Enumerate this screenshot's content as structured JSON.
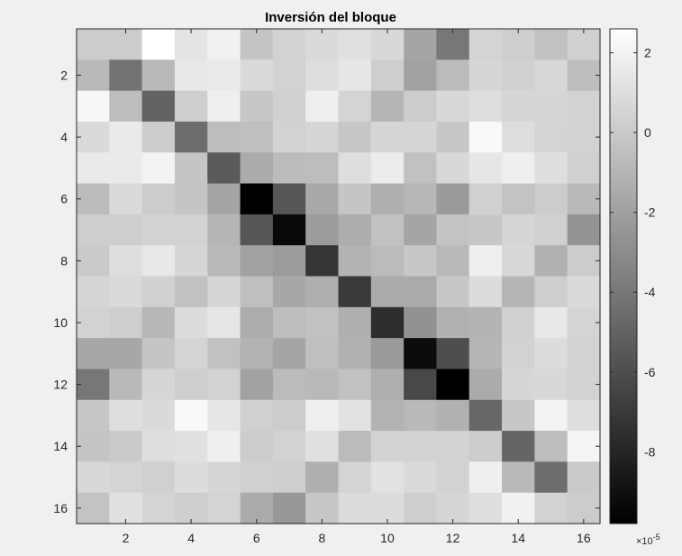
{
  "chart_data": {
    "type": "heatmap",
    "title": "Inversión del bloque",
    "x_ticks": [
      2,
      4,
      6,
      8,
      10,
      12,
      14,
      16
    ],
    "y_ticks": [
      2,
      4,
      6,
      8,
      10,
      12,
      14,
      16
    ],
    "x_range": [
      0.5,
      16.5
    ],
    "y_range": [
      0.5,
      16.5
    ],
    "y_direction": "reverse",
    "colormap": "gray",
    "color_range": [
      -9.8,
      2.6
    ],
    "colorbar_ticks": [
      2,
      0,
      -2,
      -4,
      -6,
      -8
    ],
    "colorbar_exponent_base": "×10",
    "colorbar_exponent_power": "-5",
    "colorbar_position": "right",
    "grid": false,
    "values": [
      [
        0.1,
        0.1,
        2.6,
        1.3,
        1.9,
        -0.2,
        0.4,
        0.8,
        1.1,
        0.7,
        -1.8,
        -4.0,
        0.5,
        0.2,
        -0.4,
        0.3
      ],
      [
        -0.8,
        -4.2,
        -0.8,
        1.5,
        1.6,
        0.8,
        0.4,
        1.0,
        1.4,
        0.2,
        -1.9,
        -0.7,
        0.6,
        0.3,
        0.7,
        -0.6
      ],
      [
        2.2,
        -0.6,
        -5.0,
        0.2,
        1.8,
        -0.1,
        0.3,
        1.8,
        0.5,
        -1.0,
        0.1,
        0.7,
        1.0,
        0.6,
        0.6,
        0.4
      ],
      [
        0.8,
        1.6,
        0.1,
        -4.5,
        -0.6,
        -0.5,
        0.4,
        0.6,
        -0.1,
        0.6,
        0.6,
        -0.1,
        2.3,
        1.0,
        0.5,
        0.4
      ],
      [
        1.6,
        1.6,
        2.0,
        -0.2,
        -5.4,
        -1.5,
        -0.7,
        -0.6,
        1.0,
        1.7,
        -0.4,
        0.7,
        1.4,
        1.8,
        1.0,
        0.3
      ],
      [
        -0.7,
        0.8,
        0.1,
        -0.2,
        -1.8,
        -9.8,
        -5.6,
        -1.6,
        -0.2,
        -1.3,
        -0.9,
        -2.3,
        0.3,
        -0.3,
        0.1,
        -0.8
      ],
      [
        0.2,
        0.2,
        0.4,
        0.4,
        -1.0,
        -5.6,
        -9.4,
        -2.2,
        -1.4,
        -0.4,
        -1.8,
        -0.3,
        -0.1,
        0.6,
        0.3,
        -2.6
      ],
      [
        0.0,
        1.0,
        1.5,
        0.6,
        -0.8,
        -1.9,
        -2.2,
        -7.2,
        -1.1,
        -0.7,
        -0.1,
        -0.8,
        1.8,
        0.7,
        -1.2,
        0.1
      ],
      [
        0.6,
        0.8,
        0.3,
        -0.4,
        0.6,
        -0.5,
        -1.7,
        -1.3,
        -7.0,
        -1.5,
        -1.5,
        -0.1,
        0.9,
        -1.0,
        0.2,
        0.8
      ],
      [
        0.4,
        0.2,
        -0.9,
        0.9,
        1.4,
        -1.4,
        -0.6,
        -0.4,
        -1.3,
        -7.6,
        -2.7,
        -1.2,
        -1.1,
        0.3,
        1.5,
        0.5
      ],
      [
        -1.7,
        -1.7,
        -0.2,
        0.5,
        -0.4,
        -1.1,
        -1.8,
        -0.5,
        -1.2,
        -2.3,
        -9.2,
        -6.0,
        -1.0,
        0.4,
        0.9,
        0.4
      ],
      [
        -4.0,
        -0.8,
        0.6,
        0.2,
        0.4,
        -1.9,
        -0.7,
        -0.8,
        -0.4,
        -1.3,
        -6.3,
        -9.8,
        -1.5,
        0.6,
        0.7,
        0.4
      ],
      [
        -0.1,
        1.0,
        0.8,
        2.3,
        1.4,
        0.3,
        0.1,
        1.8,
        1.2,
        -1.1,
        -0.8,
        -1.2,
        -4.8,
        -0.1,
        2.0,
        1.0
      ],
      [
        -0.2,
        0.0,
        1.0,
        1.1,
        1.8,
        0.1,
        0.4,
        1.1,
        -0.7,
        0.4,
        0.4,
        0.4,
        0.1,
        -4.9,
        -0.6,
        2.1
      ],
      [
        0.7,
        0.5,
        0.3,
        0.9,
        0.6,
        0.3,
        0.2,
        -1.3,
        0.5,
        1.2,
        0.8,
        0.4,
        1.8,
        -0.8,
        -4.5,
        0.0
      ],
      [
        -0.3,
        1.1,
        0.5,
        0.2,
        0.5,
        -1.5,
        -2.4,
        -0.1,
        0.9,
        0.9,
        0.2,
        0.6,
        1.0,
        1.9,
        0.4,
        0.1
      ]
    ]
  }
}
